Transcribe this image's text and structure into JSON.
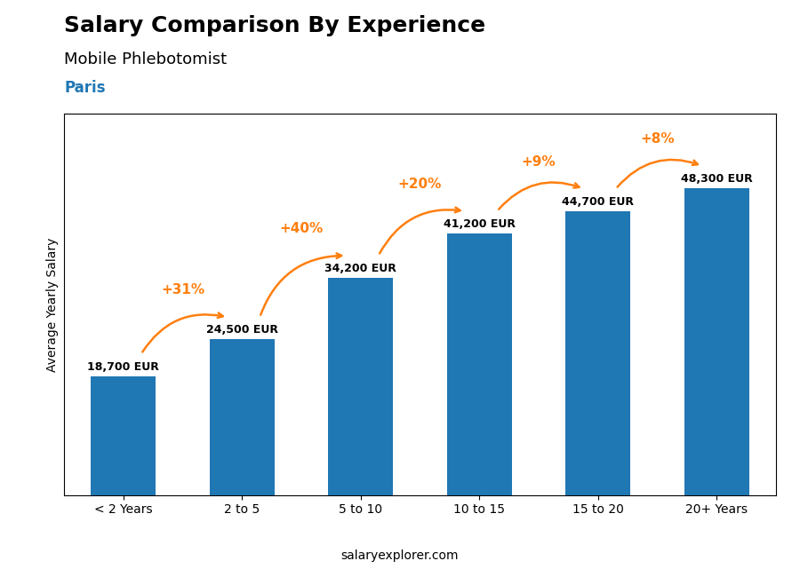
{
  "chart_data": {
    "type": "bar",
    "title": "Salary Comparison By Experience",
    "subtitle": "Mobile Phlebotomist",
    "city": "Paris",
    "footer": "salaryexplorer.com",
    "categories": [
      "< 2 Years",
      "2 to 5",
      "5 to 10",
      "10 to 15",
      "15 to 20",
      "20+ Years"
    ],
    "values": [
      18700,
      24500,
      34200,
      41200,
      44700,
      48300
    ],
    "value_labels": [
      "18,700 EUR",
      "24,500 EUR",
      "34,200 EUR",
      "41,200 EUR",
      "44,700 EUR",
      "48,300 EUR"
    ],
    "data_labels": true,
    "change_labels": [
      "+31%",
      "+40%",
      "+20%",
      "+9%",
      "+8%"
    ],
    "ylabel": "Average Yearly Salary",
    "ylim": [
      0,
      60000
    ],
    "yticks": [],
    "tick_labels": "x"
  }
}
